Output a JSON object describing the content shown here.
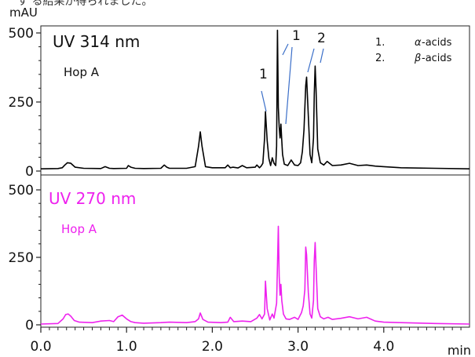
{
  "header": {
    "cutoff_text": "す る結果が得られました。",
    "unit": "mAU"
  },
  "chart_data": {
    "type": "line",
    "xlabel": "min",
    "xlim": [
      0.0,
      5.0
    ],
    "x_ticks": [
      "0.0",
      "1.0",
      "2.0",
      "3.0",
      "4.0"
    ],
    "panels": [
      {
        "id": "uv314",
        "title": "UV 314 nm",
        "sample": "Hop A",
        "color": "#000000",
        "ylim": [
          0,
          500
        ],
        "y_ticks": [
          "0",
          "250",
          "500"
        ],
        "series": [
          {
            "x": [
              0.0,
              0.2,
              0.25,
              0.28,
              0.31,
              0.35,
              0.4,
              0.5,
              0.7,
              0.75,
              0.8,
              0.85,
              1.0,
              1.02,
              1.05,
              1.1,
              1.2,
              1.4,
              1.44,
              1.47,
              1.5,
              1.7,
              1.8,
              1.84,
              1.86,
              1.88,
              1.92,
              2.0,
              2.15,
              2.18,
              2.21,
              2.24,
              2.3,
              2.35,
              2.4,
              2.5,
              2.52,
              2.55,
              2.57,
              2.59,
              2.61,
              2.62,
              2.64,
              2.66,
              2.68,
              2.7,
              2.72,
              2.74,
              2.75,
              2.76,
              2.77,
              2.78,
              2.79,
              2.8,
              2.81,
              2.82,
              2.84,
              2.88,
              2.92,
              2.96,
              3.0,
              3.03,
              3.05,
              3.07,
              3.09,
              3.1,
              3.12,
              3.14,
              3.16,
              3.18,
              3.19,
              3.2,
              3.21,
              3.23,
              3.26,
              3.3,
              3.34,
              3.4,
              3.5,
              3.6,
              3.7,
              3.8,
              3.9,
              4.0,
              4.2,
              4.6,
              5.0
            ],
            "y": [
              8,
              9,
              12,
              22,
              30,
              28,
              14,
              10,
              9,
              16,
              10,
              9,
              10,
              20,
              14,
              10,
              9,
              10,
              22,
              14,
              10,
              10,
              16,
              90,
              142,
              90,
              16,
              12,
              12,
              22,
              12,
              14,
              11,
              20,
              12,
              14,
              22,
              12,
              18,
              28,
              120,
              215,
              110,
              45,
              20,
              48,
              28,
              20,
              90,
              510,
              230,
              160,
              120,
              170,
              110,
              60,
              25,
              20,
              40,
              22,
              20,
              30,
              70,
              150,
              310,
              340,
              200,
              60,
              30,
              120,
              280,
              380,
              300,
              80,
              30,
              22,
              35,
              20,
              22,
              28,
              20,
              22,
              18,
              16,
              12,
              10,
              8
            ]
          }
        ],
        "annotations": [
          {
            "text": "1",
            "target": "α-acids peak at 2.62 min"
          },
          {
            "text": "1",
            "target": "α-acids peak at 2.76 min"
          },
          {
            "text": "2",
            "target": "β-acids peaks at 3.10 and 3.21 min"
          }
        ],
        "legend": {
          "position": "top-right",
          "items": [
            {
              "num": "1.",
              "greek": "α",
              "label": "-acids"
            },
            {
              "num": "2.",
              "greek": "β",
              "label": "-acids"
            }
          ]
        }
      },
      {
        "id": "uv270",
        "title": "UV 270 nm",
        "sample": "Hop A",
        "color": "#ee22ee",
        "ylim": [
          0,
          500
        ],
        "y_ticks": [
          "0",
          "250",
          "500"
        ],
        "series": [
          {
            "x": [
              0.0,
              0.2,
              0.26,
              0.29,
              0.32,
              0.35,
              0.39,
              0.45,
              0.6,
              0.7,
              0.8,
              0.85,
              0.9,
              0.95,
              1.0,
              1.05,
              1.1,
              1.2,
              1.4,
              1.5,
              1.7,
              1.8,
              1.84,
              1.86,
              1.89,
              1.95,
              2.1,
              2.18,
              2.21,
              2.25,
              2.35,
              2.45,
              2.52,
              2.55,
              2.58,
              2.61,
              2.62,
              2.64,
              2.67,
              2.7,
              2.72,
              2.75,
              2.76,
              2.77,
              2.78,
              2.79,
              2.8,
              2.81,
              2.83,
              2.86,
              2.9,
              2.96,
              3.0,
              3.04,
              3.06,
              3.08,
              3.09,
              3.1,
              3.12,
              3.14,
              3.16,
              3.18,
              3.19,
              3.2,
              3.21,
              3.23,
              3.26,
              3.3,
              3.35,
              3.4,
              3.5,
              3.6,
              3.7,
              3.8,
              3.9,
              4.0,
              4.2,
              4.6,
              5.0
            ],
            "y": [
              3,
              5,
              22,
              38,
              40,
              32,
              16,
              10,
              8,
              14,
              16,
              12,
              30,
              36,
              22,
              12,
              8,
              6,
              8,
              10,
              8,
              12,
              22,
              44,
              20,
              10,
              8,
              10,
              28,
              12,
              14,
              12,
              25,
              38,
              22,
              40,
              162,
              60,
              18,
              40,
              25,
              80,
              220,
              365,
              180,
              110,
              150,
              90,
              40,
              22,
              20,
              28,
              20,
              45,
              70,
              130,
              288,
              260,
              120,
              40,
              25,
              90,
              240,
              305,
              220,
              60,
              30,
              22,
              28,
              20,
              24,
              30,
              22,
              28,
              14,
              10,
              8,
              5,
              3
            ]
          }
        ],
        "annotations": [],
        "legend": null
      }
    ]
  }
}
